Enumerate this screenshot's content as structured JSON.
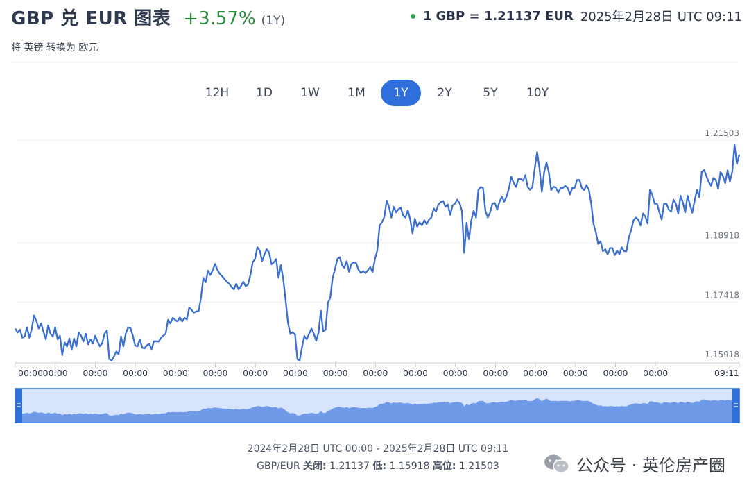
{
  "header": {
    "title": "GBP 兑 EUR 图表",
    "change": "+3.57%",
    "period": "(1Y)",
    "subtitle": "将 英镑 转换为 欧元",
    "rate": "1 GBP = 1.21137 EUR",
    "timestamp": "2025年2月28日 UTC 09:11"
  },
  "tabs": [
    {
      "label": "12H",
      "active": false
    },
    {
      "label": "1D",
      "active": false
    },
    {
      "label": "1W",
      "active": false
    },
    {
      "label": "1M",
      "active": false
    },
    {
      "label": "1Y",
      "active": true
    },
    {
      "label": "2Y",
      "active": false
    },
    {
      "label": "5Y",
      "active": false
    },
    {
      "label": "10Y",
      "active": false
    }
  ],
  "footer": {
    "range": "2024年2月28日 UTC 00:00 - 2025年2月28日 UTC 09:11",
    "pair": "GBP/EUR",
    "close_label": "关闭:",
    "close_value": "1.21137",
    "low_label": "低:",
    "low_value": "1.15918",
    "high_label": "高位:",
    "high_value": "1.21503"
  },
  "watermark": {
    "text": "公众号 · 英伦房产圈"
  },
  "colors": {
    "accent": "#2f6fdc",
    "line": "#3a6fcf",
    "positive": "#2e8b3e",
    "navigator_fill": "#6f9ae8",
    "navigator_bg": "#d8e4fb"
  },
  "chart_data": {
    "type": "line",
    "series": [
      {
        "values": [
          1.1675,
          1.1665,
          1.1672,
          1.1652,
          1.1655,
          1.1678,
          1.1652,
          1.1673,
          1.1708,
          1.1694,
          1.1675,
          1.1688,
          1.1667,
          1.1648,
          1.1683,
          1.1662,
          1.1655,
          1.1678,
          1.1648,
          1.1657,
          1.1608,
          1.164,
          1.163,
          1.165,
          1.1622,
          1.165,
          1.163,
          1.1665,
          1.1657,
          1.1642,
          1.1662,
          1.1635,
          1.1648,
          1.1637,
          1.1657,
          1.1642,
          1.163,
          1.1638,
          1.1662,
          1.167,
          1.1598,
          1.1594,
          1.1605,
          1.1617,
          1.161,
          1.1655,
          1.163,
          1.1662,
          1.1678,
          1.1676,
          1.1657,
          1.1632,
          1.163,
          1.1648,
          1.1627,
          1.1625,
          1.1633,
          1.1636,
          1.1623,
          1.1643,
          1.1643,
          1.1642,
          1.1652,
          1.1657,
          1.1662,
          1.1697,
          1.1688,
          1.1702,
          1.1697,
          1.1693,
          1.1703,
          1.1693,
          1.1702,
          1.1698,
          1.1728,
          1.1722,
          1.1715,
          1.1718,
          1.1719,
          1.1753,
          1.1803,
          1.1792,
          1.1821,
          1.181,
          1.1822,
          1.1838,
          1.1823,
          1.1813,
          1.1807,
          1.18,
          1.1793,
          1.1788,
          1.178,
          1.1774,
          1.1788,
          1.1774,
          1.1782,
          1.1793,
          1.1782,
          1.1786,
          1.181,
          1.1842,
          1.185,
          1.188,
          1.1872,
          1.1845,
          1.1862,
          1.1875,
          1.1866,
          1.1837,
          1.1842,
          1.185,
          1.1803,
          1.1835,
          1.18,
          1.1747,
          1.169,
          1.1661,
          1.1666,
          1.166,
          1.1598,
          1.1595,
          1.1628,
          1.1656,
          1.1648,
          1.1662,
          1.1675,
          1.1662,
          1.1644,
          1.1665,
          1.172,
          1.1668,
          1.1672,
          1.174,
          1.1753,
          1.1803,
          1.1825,
          1.185,
          1.1855,
          1.1835,
          1.1828,
          1.1845,
          1.1818,
          1.1838,
          1.1842,
          1.184,
          1.1823,
          1.1815,
          1.182,
          1.1815,
          1.1822,
          1.183,
          1.1817,
          1.185,
          1.1872,
          1.1935,
          1.1943,
          1.1957,
          1.1998,
          1.1982,
          1.1955,
          1.1982,
          1.1968,
          1.1976,
          1.198,
          1.196,
          1.1955,
          1.1973,
          1.195,
          1.1915,
          1.1952,
          1.1932,
          1.1943,
          1.1935,
          1.1948,
          1.1938,
          1.195,
          1.1955,
          1.1978,
          1.197,
          1.1988,
          1.1994,
          1.1997,
          1.1982,
          1.1988,
          1.1962,
          1.1985,
          1.199,
          1.2,
          1.1992,
          1.1972,
          1.1866,
          1.1942,
          1.19,
          1.1948,
          1.1972,
          1.1955,
          1.2025,
          1.2032,
          1.203,
          1.1972,
          1.1955,
          1.1968,
          1.199,
          1.1992,
          1.1975,
          1.1995,
          1.2008,
          1.1995,
          1.2008,
          1.2028,
          1.2058,
          1.2043,
          1.2032,
          1.2052,
          1.2052,
          1.2048,
          1.2062,
          1.2032,
          1.2025,
          1.2032,
          1.208,
          1.212,
          1.208,
          1.202,
          1.207,
          1.2094,
          1.2069,
          1.2024,
          1.2033,
          1.203,
          1.2018,
          1.203,
          1.203,
          1.2035,
          1.203,
          1.2013,
          1.203,
          1.203,
          1.205,
          1.205,
          1.203,
          1.2024,
          1.2037,
          1.2025,
          1.199,
          1.1939,
          1.1918,
          1.1888,
          1.1895,
          1.187,
          1.1875,
          1.1862,
          1.1878,
          1.1878,
          1.186,
          1.1872,
          1.1862,
          1.188,
          1.187,
          1.187,
          1.1905,
          1.1923,
          1.1948,
          1.1955,
          1.195,
          1.1935,
          1.1965,
          1.1958,
          1.194,
          1.2025,
          1.2012,
          1.199,
          1.199,
          1.1968,
          1.195,
          1.199,
          1.199,
          1.1975,
          1.197,
          1.2,
          1.199,
          1.1965,
          1.201,
          1.1993,
          1.1968,
          1.201,
          1.1988,
          1.1967,
          1.1998,
          1.2025,
          1.2006,
          1.207,
          1.2075,
          1.206,
          1.2045,
          1.2035,
          1.2055,
          1.205,
          1.2028,
          1.207,
          1.206,
          1.2042,
          1.2074,
          1.2046,
          1.207,
          1.2138,
          1.209,
          1.2114
        ]
      }
    ],
    "x_tick_labels": [
      "00:00",
      "00:00",
      "00:00",
      "00:00",
      "00:00",
      "00:00",
      "00:00",
      "00:00",
      "00:00",
      "00:00",
      "00:00",
      "00:00",
      "00:00",
      "00:00",
      "00:00",
      "00:00",
      "00:00",
      "09:11"
    ],
    "y_tick_labels": [
      "1.21503",
      "1.18918",
      "1.17418",
      "1.15918"
    ],
    "y_ticks": [
      1.21503,
      1.18918,
      1.17418,
      1.15918
    ],
    "ylim": [
      1.15918,
      1.21503
    ],
    "grid": true,
    "navigator": true
  }
}
